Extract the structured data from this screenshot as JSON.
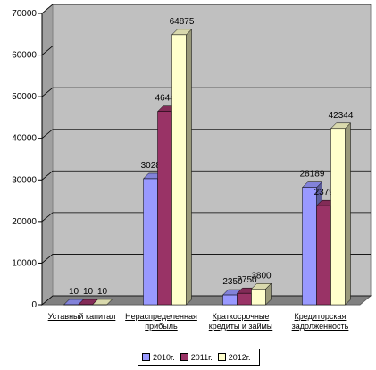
{
  "chart_data": {
    "type": "bar3d",
    "categories": [
      "Уставный капитал",
      "Нераспределенная прибыль",
      "Краткосрочные кредиты и займы",
      "Кредиторская задолженность"
    ],
    "series": [
      {
        "name": "2010г.",
        "color": "#9999ff",
        "values": [
          10,
          30282,
          2350,
          28189
        ]
      },
      {
        "name": "2011г.",
        "color": "#993366",
        "values": [
          10,
          46440,
          2750,
          23796
        ]
      },
      {
        "name": "2012г.",
        "color": "#ffffcc",
        "values": [
          10,
          64875,
          3800,
          42344
        ]
      }
    ],
    "ylim": [
      0,
      70000
    ],
    "yticks": [
      0,
      10000,
      20000,
      30000,
      40000,
      50000,
      60000,
      70000
    ],
    "grid": true
  }
}
